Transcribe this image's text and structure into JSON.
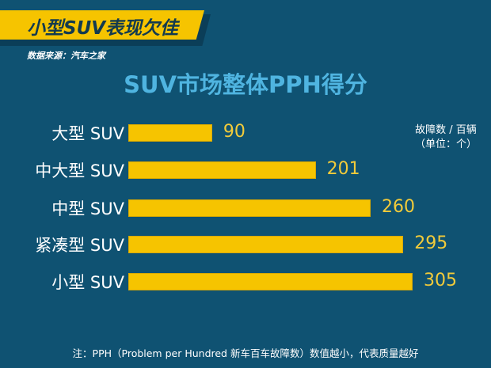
{
  "header": {
    "title": "小型SUV表现欠佳",
    "source": "数据来源：汽车之家"
  },
  "colors": {
    "background": "#0f5272",
    "bar": "#f6c400",
    "value_label": "#f2cb3a",
    "title": "#4fb4e0",
    "banner": "#f6c400",
    "banner_text": "#123a4f"
  },
  "unit": {
    "line1": "故障数 / 百辆",
    "line2": "（单位：个）"
  },
  "footnote": "注：PPH（Problem per Hundred 新车百车故障数）数值越小，代表质量越好",
  "chart_data": {
    "type": "bar",
    "orientation": "horizontal",
    "title": "SUV市场整体PPH得分",
    "categories": [
      "大型 SUV",
      "中大型 SUV",
      "中型 SUV",
      "紧凑型 SUV",
      "小型 SUV"
    ],
    "values": [
      90,
      201,
      260,
      295,
      305
    ],
    "labels": [
      "90",
      "201",
      "260",
      "295",
      "305"
    ],
    "xlabel": "",
    "ylabel": "",
    "unit_note": "故障数 / 百辆（单位：个）",
    "grid": false,
    "legend": null,
    "xlim": [
      0,
      305
    ]
  }
}
